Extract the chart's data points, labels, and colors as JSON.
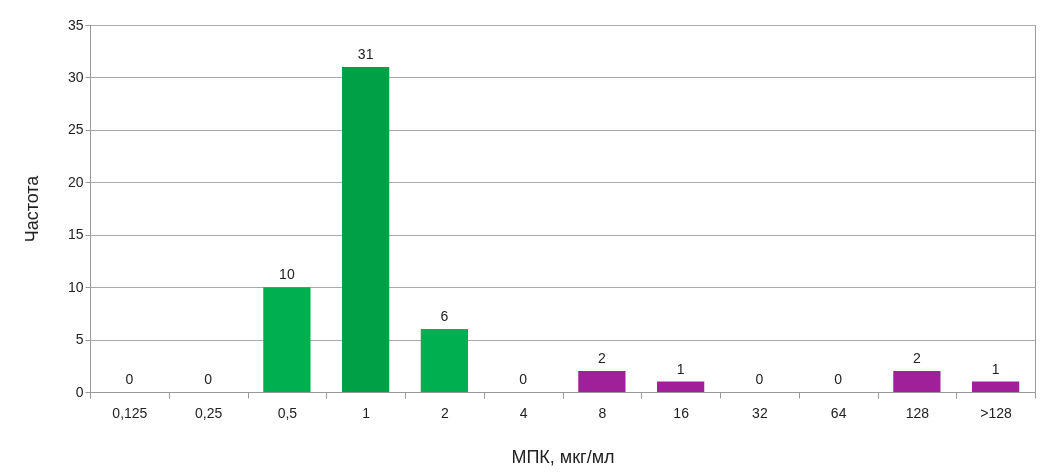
{
  "chart_data": {
    "type": "bar",
    "xlabel": "МПК, мкг/мл",
    "ylabel": "Частота",
    "categories": [
      "0,125",
      "0,25",
      "0,5",
      "1",
      "2",
      "4",
      "8",
      "16",
      "32",
      "64",
      "128",
      ">128"
    ],
    "values": [
      0,
      0,
      10,
      31,
      6,
      0,
      2,
      1,
      0,
      0,
      2,
      1
    ],
    "colors": [
      "#00b050",
      "#00b050",
      "#00b050",
      "#00a047",
      "#00b050",
      "#00b050",
      "#a0209a",
      "#a0209a",
      "#a0209a",
      "#a0209a",
      "#a0209a",
      "#a0209a"
    ],
    "ylim": [
      0,
      35
    ],
    "yticks": [
      0,
      5,
      10,
      15,
      20,
      25,
      30,
      35
    ],
    "grid": "y",
    "data_labels": true
  }
}
